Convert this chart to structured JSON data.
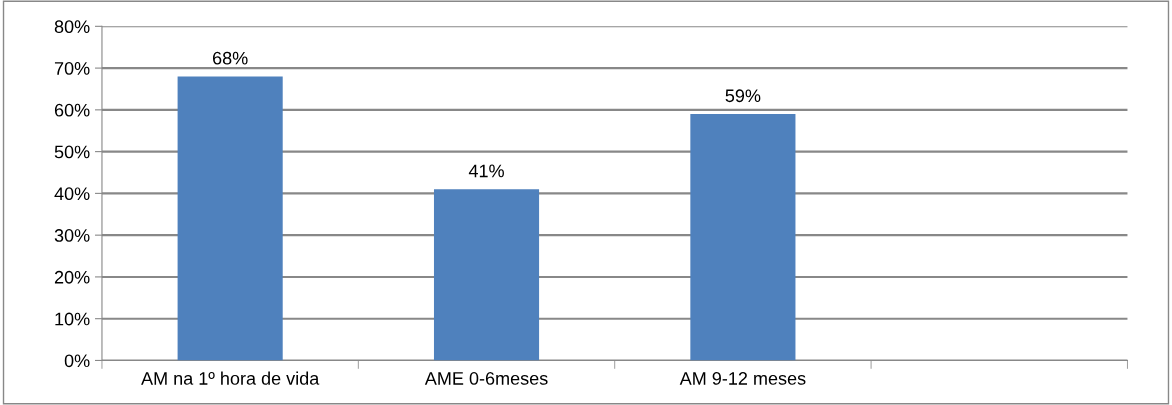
{
  "chart_data": {
    "type": "bar",
    "categories": [
      "AM na 1º hora de vida",
      "AME 0-6meses",
      "AM 9-12 meses",
      null
    ],
    "values": [
      68,
      41,
      59,
      null
    ],
    "color": "#4f81bd",
    "value_labels": [
      "68%",
      "41%",
      "59%",
      null
    ],
    "ylim": [
      0,
      80
    ],
    "yticks": [
      {
        "value": 0,
        "label": "0%"
      },
      {
        "value": 10,
        "label": "10%"
      },
      {
        "value": 20,
        "label": "20%"
      },
      {
        "value": 30,
        "label": "30%"
      },
      {
        "value": 40,
        "label": "40%"
      },
      {
        "value": 50,
        "label": "50%"
      },
      {
        "value": 60,
        "label": "60%"
      },
      {
        "value": 70,
        "label": "70%"
      },
      {
        "value": 80,
        "label": "80%"
      }
    ],
    "grid": "y",
    "legend": false
  }
}
